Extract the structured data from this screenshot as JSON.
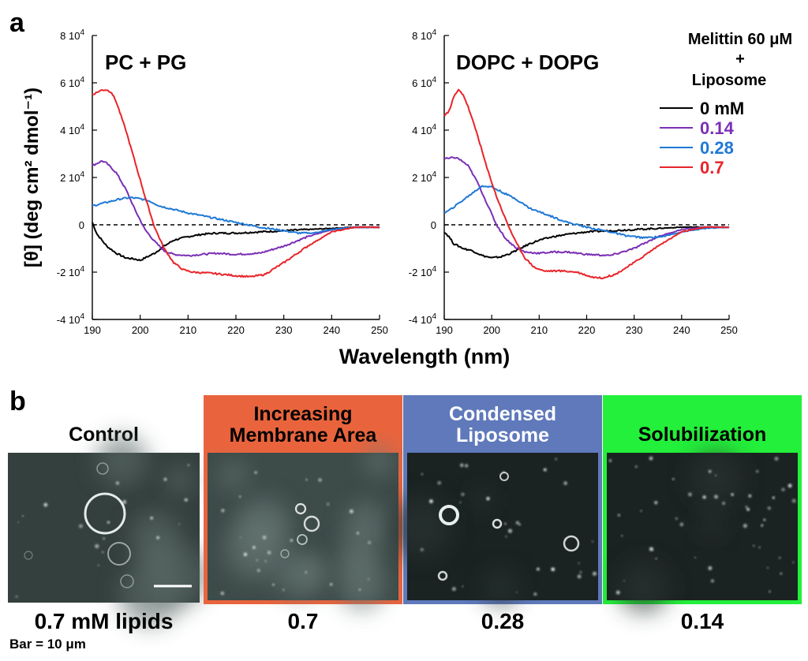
{
  "panel_a_letter": "a",
  "panel_b_letter": "b",
  "chart_data": [
    {
      "type": "line",
      "title": "PC + PG",
      "xlabel": "Wavelength (nm)",
      "ylabel": "[θ] (deg cm² dmol⁻¹)",
      "xlim": [
        190,
        250
      ],
      "ylim": [
        -40000,
        80000
      ],
      "xticks": [
        "190",
        "200",
        "210",
        "220",
        "230",
        "240",
        "250"
      ],
      "yticks": [
        {
          "base": "8 10",
          "exp": "4",
          "value": 80000
        },
        {
          "base": "6 10",
          "exp": "4",
          "value": 60000
        },
        {
          "base": "4 10",
          "exp": "4",
          "value": 40000
        },
        {
          "base": "2 10",
          "exp": "4",
          "value": 20000
        },
        {
          "base": "0",
          "exp": "",
          "value": 0
        },
        {
          "base": "-2 10",
          "exp": "4",
          "value": -20000
        },
        {
          "base": "-4 10",
          "exp": "4",
          "value": -40000
        }
      ],
      "zero_line": "dashed",
      "series": [
        {
          "name": "0 mM",
          "color": "#000000",
          "x": [
            190,
            191,
            193,
            195,
            197,
            199,
            200,
            201,
            203,
            205,
            207,
            210,
            213,
            216,
            220,
            225,
            230,
            235,
            240,
            245,
            250
          ],
          "values": [
            1000,
            -4000,
            -9000,
            -12000,
            -14000,
            -14500,
            -15000,
            -14000,
            -12000,
            -9000,
            -6500,
            -5000,
            -4000,
            -3500,
            -3500,
            -3000,
            -2500,
            -2000,
            -1500,
            -1000,
            -1000
          ]
        },
        {
          "name": "0.14",
          "color": "#7a2fb5",
          "x": [
            190,
            191,
            192,
            193,
            195,
            197,
            199,
            201,
            203,
            205,
            207,
            210,
            213,
            216,
            220,
            225,
            230,
            235,
            240,
            245,
            250
          ],
          "values": [
            25000,
            26000,
            27000,
            26000,
            22000,
            15000,
            6000,
            -2000,
            -7000,
            -11000,
            -12500,
            -13000,
            -12500,
            -12000,
            -12500,
            -12000,
            -9000,
            -5000,
            -2000,
            -1000,
            -1000
          ]
        },
        {
          "name": "0.28",
          "color": "#1e78d6",
          "x": [
            190,
            192,
            194,
            196,
            198,
            200,
            202,
            204,
            206,
            210,
            215,
            220,
            225,
            230,
            233,
            236,
            240,
            245,
            250
          ],
          "values": [
            8000,
            9000,
            10000,
            11000,
            11500,
            11000,
            10000,
            8000,
            7000,
            5000,
            3000,
            1000,
            -1000,
            -2500,
            -3500,
            -3500,
            -2000,
            -1000,
            -1000
          ]
        },
        {
          "name": "0.7",
          "color": "#e8242a",
          "x": [
            190,
            191,
            192,
            193,
            194,
            195,
            197,
            199,
            201,
            203,
            205,
            207,
            209,
            211,
            215,
            220,
            223,
            226,
            230,
            235,
            240,
            245,
            250
          ],
          "values": [
            55000,
            56000,
            57000,
            57000,
            56000,
            52000,
            40000,
            26000,
            12000,
            -1000,
            -10000,
            -16000,
            -19000,
            -20000,
            -20500,
            -21500,
            -22000,
            -21000,
            -16000,
            -9000,
            -3000,
            -1000,
            -1000
          ]
        }
      ]
    },
    {
      "type": "line",
      "title": "DOPC + DOPG",
      "xlabel": "Wavelength (nm)",
      "ylabel": "",
      "xlim": [
        190,
        250
      ],
      "ylim": [
        -40000,
        80000
      ],
      "xticks": [
        "190",
        "200",
        "210",
        "220",
        "230",
        "240",
        "250"
      ],
      "yticks": [
        {
          "base": "8 10",
          "exp": "4",
          "value": 80000
        },
        {
          "base": "6 10",
          "exp": "4",
          "value": 60000
        },
        {
          "base": "4 10",
          "exp": "4",
          "value": 40000
        },
        {
          "base": "2 10",
          "exp": "4",
          "value": 20000
        },
        {
          "base": "0",
          "exp": "",
          "value": 0
        },
        {
          "base": "-2 10",
          "exp": "4",
          "value": -20000
        },
        {
          "base": "-4 10",
          "exp": "4",
          "value": -40000
        }
      ],
      "zero_line": "dashed",
      "legend": {
        "title_lines": [
          "Melittin 60 μM",
          "+",
          "Liposome"
        ],
        "placement": "right"
      },
      "series": [
        {
          "name": "0  mM",
          "color": "#000000",
          "x": [
            190,
            191,
            192,
            194,
            196,
            198,
            200,
            202,
            204,
            206,
            208,
            210,
            213,
            216,
            220,
            225,
            230,
            235,
            240,
            245,
            250
          ],
          "values": [
            -3000,
            -5000,
            -8000,
            -10000,
            -11000,
            -13000,
            -14000,
            -13500,
            -12000,
            -10000,
            -8000,
            -6500,
            -5000,
            -4000,
            -3000,
            -2500,
            -2000,
            -1500,
            -1000,
            -1000,
            -1000
          ]
        },
        {
          "name": "0.14",
          "color": "#7a2fb5",
          "x": [
            190,
            191,
            192,
            193,
            195,
            197,
            199,
            201,
            203,
            205,
            207,
            210,
            213,
            216,
            220,
            225,
            230,
            235,
            240,
            245,
            250
          ],
          "values": [
            28000,
            28000,
            28500,
            28000,
            25000,
            18000,
            9000,
            0,
            -6000,
            -9500,
            -11500,
            -12000,
            -11500,
            -11500,
            -12500,
            -13000,
            -10000,
            -5000,
            -2000,
            -1000,
            -1000
          ]
        },
        {
          "name": "0.28",
          "color": "#1e78d6",
          "x": [
            190,
            191,
            193,
            195,
            197,
            198,
            200,
            202,
            205,
            208,
            212,
            216,
            220,
            225,
            228,
            232,
            236,
            240,
            245,
            250
          ],
          "values": [
            5000,
            6000,
            9000,
            12000,
            15000,
            16500,
            16000,
            14000,
            11000,
            7000,
            4000,
            1000,
            -1000,
            -3000,
            -4500,
            -5500,
            -5000,
            -3000,
            -1500,
            -1000
          ]
        },
        {
          "name": "0.7",
          "color": "#e8242a",
          "x": [
            190,
            191,
            192,
            193,
            194,
            195,
            197,
            199,
            201,
            203,
            205,
            207,
            209,
            211,
            215,
            218,
            221,
            223,
            226,
            230,
            235,
            240,
            245,
            250
          ],
          "values": [
            46000,
            48000,
            54000,
            57000,
            55000,
            50000,
            38000,
            24000,
            12000,
            2000,
            -7000,
            -14000,
            -18000,
            -19500,
            -19500,
            -20000,
            -22000,
            -22500,
            -21000,
            -16000,
            -9000,
            -3000,
            -1000,
            -1000
          ]
        }
      ]
    }
  ],
  "microscopy": {
    "panels": [
      {
        "title_lines": [
          "Control"
        ],
        "caption": "0.7 mM lipids",
        "border_color": "#ffffff",
        "header_color": "#ffffff"
      },
      {
        "title_lines": [
          "Increasing",
          "Membrane Area"
        ],
        "caption": "0.7",
        "border_color": "#e9643d",
        "header_color": "#e9643d"
      },
      {
        "title_lines": [
          "Condensed",
          "Liposome"
        ],
        "caption": "0.28",
        "border_color": "#5f79bb",
        "header_color": "#5f79bb"
      },
      {
        "title_lines": [
          "Solubilization"
        ],
        "caption": "0.14",
        "border_color": "#23f03a",
        "header_color": "#23f03a"
      }
    ],
    "scale_bar_caption": "Bar = 10 μm"
  }
}
